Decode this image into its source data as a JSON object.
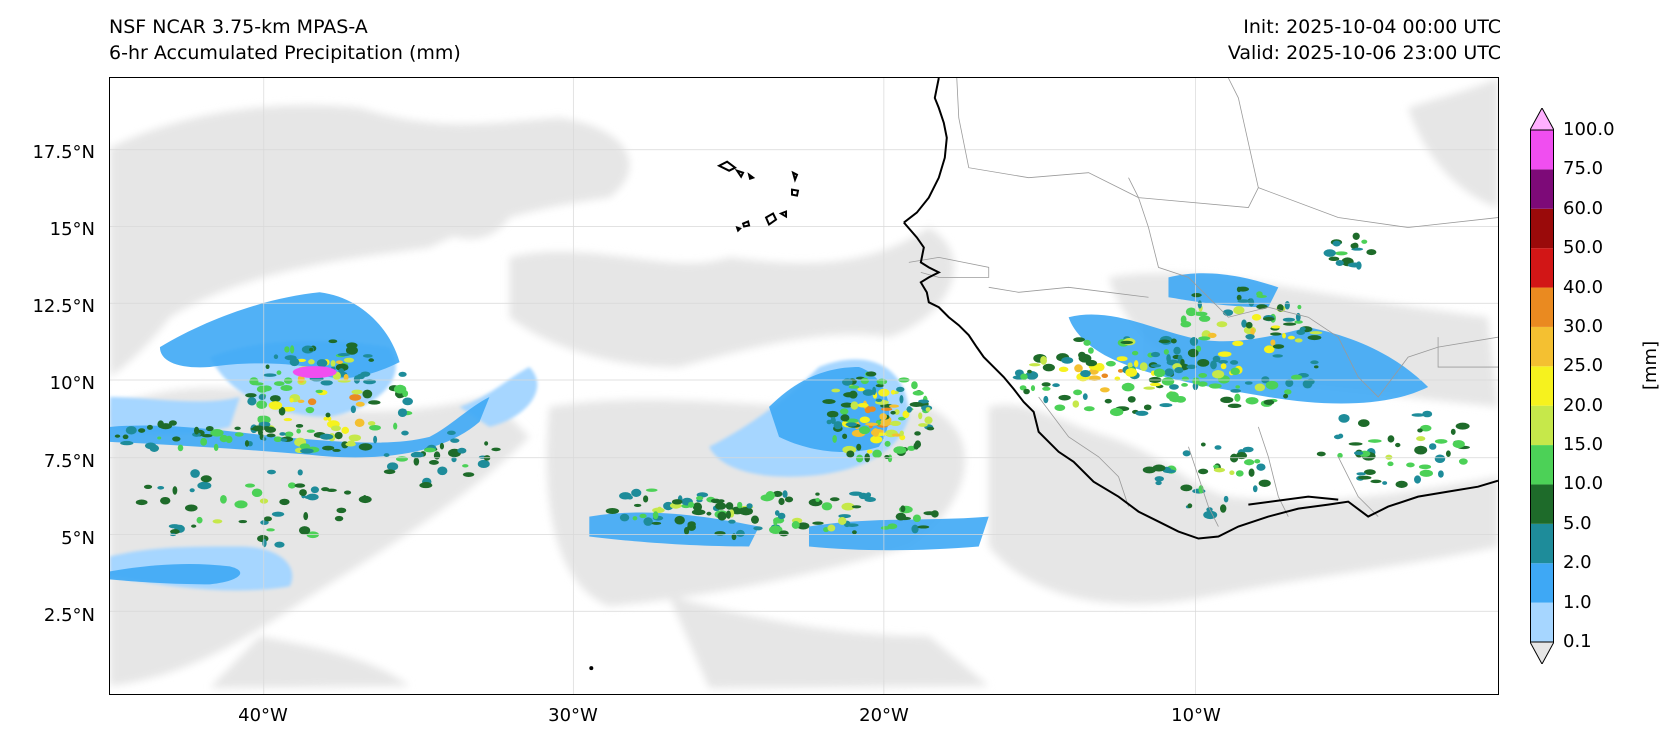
{
  "title": {
    "model": "NSF NCAR 3.75-km MPAS-A",
    "field": "6-hr Accumulated Precipitation (mm)",
    "init": "Init: 2025-10-04 00:00 UTC",
    "valid": "Valid: 2025-10-06 23:00 UTC"
  },
  "axes": {
    "lat_ticks": [
      "17.5°N",
      "15°N",
      "12.5°N",
      "10°N",
      "7.5°N",
      "5°N",
      "2.5°N"
    ],
    "lon_ticks": [
      "40°W",
      "30°W",
      "20°W",
      "10°W"
    ],
    "lon_range": [
      -45,
      -0.3
    ],
    "lat_range": [
      -0.2,
      19.8
    ],
    "grid": true
  },
  "colorbar": {
    "unit": "[mm]",
    "levels": [
      "0.1",
      "1.0",
      "2.0",
      "5.0",
      "10.0",
      "15.0",
      "20.0",
      "25.0",
      "30.0",
      "40.0",
      "50.0",
      "60.0",
      "75.0",
      "100.0"
    ],
    "colors": [
      "#e6e6e6",
      "#a6d6ff",
      "#3ea8f5",
      "#1e8c9a",
      "#1e6b2a",
      "#4cd157",
      "#c6e84a",
      "#f6f21e",
      "#f4c031",
      "#ea8a20",
      "#d21616",
      "#9a0a0a",
      "#7d0a78",
      "#f04ef0",
      "#ffb0ff"
    ],
    "extend": "both"
  },
  "colors": {
    "coast": "#000000",
    "border": "#9a9a9a",
    "grid": "#d8d8d8"
  }
}
